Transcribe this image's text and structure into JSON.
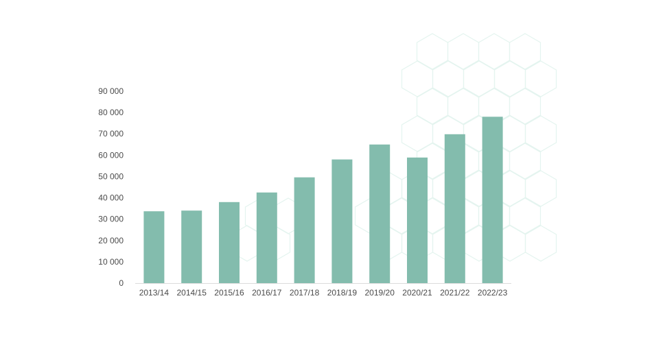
{
  "colors": {
    "bar": "#83bcad",
    "axis": "#dcdcdc",
    "pattern": "#e4f4ef",
    "text": "#4a4a4a"
  },
  "chart_data": {
    "type": "bar",
    "title": "",
    "xlabel": "",
    "ylabel": "",
    "categories": [
      "2013/14",
      "2014/15",
      "2015/16",
      "2016/17",
      "2017/18",
      "2018/19",
      "2019/20",
      "2020/21",
      "2021/22",
      "2022/23"
    ],
    "values": [
      33700,
      34000,
      38000,
      42500,
      49600,
      58000,
      65000,
      58900,
      69800,
      78000
    ],
    "ylim": [
      0,
      90000
    ],
    "yticks": [
      0,
      10000,
      20000,
      30000,
      40000,
      50000,
      60000,
      70000,
      80000,
      90000
    ],
    "ytick_labels": [
      "0",
      "10 000",
      "20 000",
      "30 000",
      "40 000",
      "50 000",
      "60 000",
      "70 000",
      "80 000",
      "90 000"
    ],
    "grid": false,
    "legend": "none"
  }
}
